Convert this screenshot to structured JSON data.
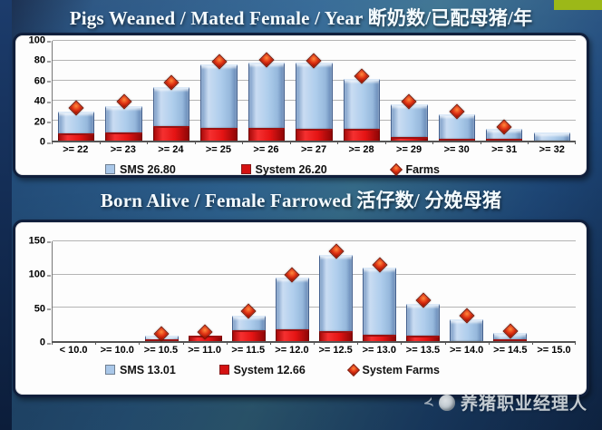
{
  "slide": {
    "decor": {
      "tab_color": "#9cb818"
    },
    "watermark": {
      "text": "养猪职业经理人",
      "icon": "publisher-logo-circle"
    }
  },
  "chart_data": [
    {
      "type": "bar",
      "title": "Pigs Weaned / Mated Female / Year 断奶数/已配母猪/年",
      "categories": [
        ">= 22",
        ">= 23",
        ">= 24",
        ">= 25",
        ">= 26",
        ">= 27",
        ">= 28",
        ">= 29",
        ">= 30",
        ">= 31",
        ">= 32"
      ],
      "xlabel": "",
      "ylabel": "",
      "ylim": [
        0,
        100
      ],
      "yticks": [
        0,
        20,
        40,
        60,
        80,
        100
      ],
      "grid": true,
      "legend_position": "bottom",
      "series": [
        {
          "name": "SMS 26.80",
          "role": "bar_total",
          "marker": "square",
          "color": "#a9c7e8",
          "values": [
            29,
            35,
            54,
            76,
            78,
            78,
            62,
            36,
            26,
            11,
            8
          ]
        },
        {
          "name": "System 26.20",
          "role": "bar_bottom",
          "marker": "square",
          "color": "#d51212",
          "values": [
            7,
            8,
            15,
            13,
            13,
            12,
            12,
            4,
            2,
            1,
            0
          ]
        },
        {
          "name": "Farms",
          "role": "point",
          "marker": "diamond",
          "color": "#cc3311",
          "values": [
            32,
            38,
            57,
            78,
            80,
            79,
            64,
            38,
            28,
            13,
            null
          ]
        }
      ]
    },
    {
      "type": "bar",
      "title": "Born Alive / Female Farrowed 活仔数/ 分娩母猪",
      "categories": [
        "< 10.0",
        ">= 10.0",
        ">= 10.5",
        ">= 11.0",
        ">= 11.5",
        ">= 12.0",
        ">= 12.5",
        ">= 13.0",
        ">= 13.5",
        ">= 14.0",
        ">= 14.5",
        ">= 15.0"
      ],
      "xlabel": "",
      "ylabel": "",
      "ylim": [
        0,
        150
      ],
      "yticks": [
        0,
        50,
        100,
        150
      ],
      "grid": true,
      "legend_position": "bottom",
      "series": [
        {
          "name": "SMS 13.01",
          "role": "bar_total",
          "marker": "square",
          "color": "#a9c7e8",
          "values": [
            0,
            0,
            6,
            8,
            38,
            95,
            130,
            110,
            56,
            33,
            10,
            0
          ]
        },
        {
          "name": "System 12.66",
          "role": "bar_bottom",
          "marker": "square",
          "color": "#d51212",
          "values": [
            0,
            0,
            1,
            8,
            16,
            18,
            15,
            10,
            8,
            0,
            1,
            0
          ]
        },
        {
          "name": "System Farms",
          "role": "point",
          "marker": "diamond",
          "color": "#cc3311",
          "values": [
            null,
            null,
            10,
            12,
            43,
            98,
            133,
            113,
            60,
            37,
            14,
            null
          ]
        }
      ]
    }
  ]
}
